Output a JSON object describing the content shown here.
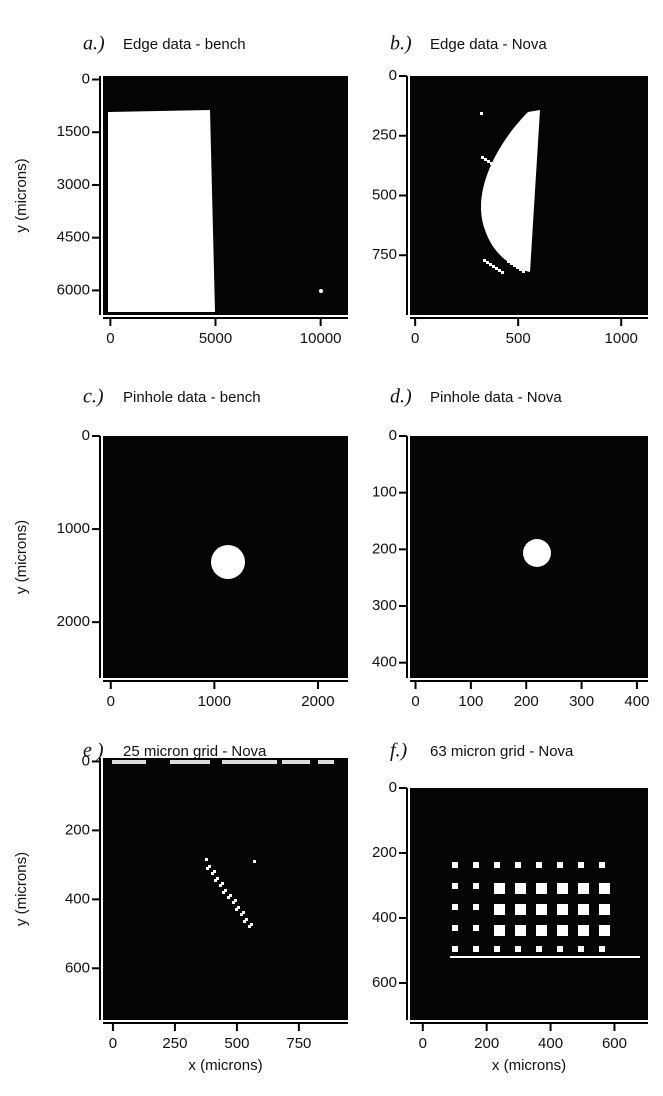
{
  "chart_data": [
    {
      "type": "image",
      "panel_label": "a.)",
      "title": "Edge data - bench",
      "ylabel": "y (microns)",
      "xlim": [
        -350,
        11300
      ],
      "ylim": [
        -100,
        6700
      ],
      "xticks": [
        0,
        5000,
        10000
      ],
      "yticks": [
        0,
        1500,
        3000,
        4500,
        6000
      ]
    },
    {
      "type": "image",
      "panel_label": "b.)",
      "title": "Edge data - Nova",
      "xlim": [
        -25,
        1130
      ],
      "ylim": [
        0,
        1000
      ],
      "xticks": [
        0,
        500,
        1000
      ],
      "yticks": [
        0,
        250,
        500,
        750
      ]
    },
    {
      "type": "image",
      "panel_label": "c.)",
      "title": "Pinhole data - bench",
      "ylabel": "y (microns)",
      "xlim": [
        -75,
        2290
      ],
      "ylim": [
        0,
        2600
      ],
      "xticks": [
        0,
        1000,
        2000
      ],
      "yticks": [
        0,
        1000,
        2000
      ]
    },
    {
      "type": "image",
      "panel_label": "d.)",
      "title": "Pinhole data - Nova",
      "xlim": [
        -10,
        420
      ],
      "ylim": [
        0,
        427
      ],
      "xticks": [
        0,
        100,
        200,
        300,
        400
      ],
      "yticks": [
        0,
        100,
        200,
        300,
        400
      ]
    },
    {
      "type": "image",
      "panel_label": "e )",
      "title": "25 micron grid - Nova",
      "xlabel": "x (microns)",
      "ylabel": "y (microns)",
      "xlim": [
        -40,
        948
      ],
      "ylim": [
        -10,
        750
      ],
      "xticks": [
        0,
        250,
        500,
        750
      ],
      "yticks": [
        0,
        200,
        400,
        600
      ]
    },
    {
      "type": "image",
      "panel_label": "f.)",
      "title": "63 micron grid - Nova",
      "xlabel": "x (microns)",
      "xlim": [
        -40,
        705
      ],
      "ylim": [
        0,
        714
      ],
      "xticks": [
        0,
        200,
        400,
        600
      ],
      "yticks": [
        0,
        200,
        400,
        600
      ]
    }
  ]
}
